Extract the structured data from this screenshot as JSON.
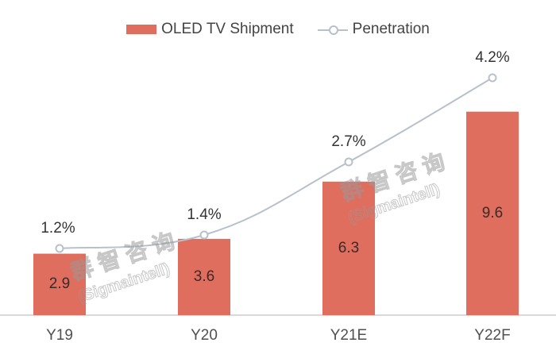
{
  "chart_data": {
    "type": "bar",
    "title": "",
    "categories": [
      "Y19",
      "Y20",
      "Y21E",
      "Y22F"
    ],
    "series": [
      {
        "name": "OLED TV Shipment",
        "type": "bar",
        "values": [
          2.9,
          3.6,
          6.3,
          9.6
        ],
        "labels": [
          "2.9",
          "3.6",
          "6.3",
          "9.6"
        ],
        "color": "#e06e5e"
      },
      {
        "name": "Penetration",
        "type": "line",
        "values": [
          1.2,
          1.4,
          2.7,
          4.2
        ],
        "labels": [
          "1.2%",
          "1.4%",
          "2.7%",
          "4.2%"
        ],
        "color": "#b8c0cb",
        "unit": "%"
      }
    ],
    "xlabel": "",
    "ylabel": "",
    "grid": false,
    "legend_position": "top",
    "watermark": [
      "群智咨询",
      "(Sigmaintell)"
    ]
  },
  "legend": {
    "bar_label": "OLED TV Shipment",
    "line_label": "Penetration"
  }
}
